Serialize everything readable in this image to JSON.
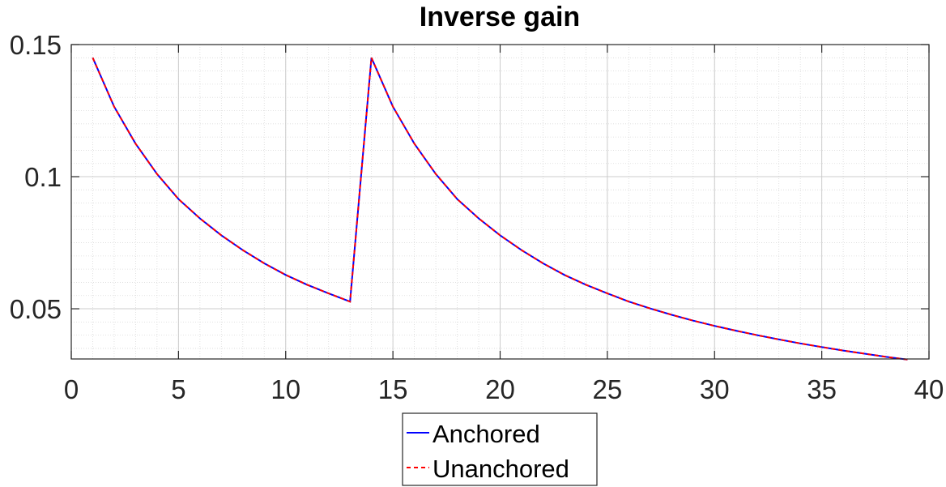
{
  "chart_data": {
    "type": "line",
    "title": "Inverse gain",
    "xlabel": "",
    "ylabel": "",
    "xlim": [
      0,
      40
    ],
    "ylim": [
      0.031,
      0.15
    ],
    "xticks": [
      0,
      5,
      10,
      15,
      20,
      25,
      30,
      35,
      40
    ],
    "xtick_labels": [
      "0",
      "5",
      "10",
      "15",
      "20",
      "25",
      "30",
      "35",
      "40"
    ],
    "yticks": [
      0.05,
      0.1,
      0.15
    ],
    "ytick_labels": [
      "0.05",
      "0.1",
      "0.15"
    ],
    "grid": true,
    "minor_grid": true,
    "legend_position": "bottom-center-outside",
    "x": [
      1,
      2,
      3,
      4,
      5,
      6,
      7,
      8,
      9,
      10,
      11,
      12,
      13,
      14,
      15,
      16,
      17,
      18,
      19,
      20,
      21,
      22,
      23,
      24,
      25,
      26,
      27,
      28,
      29,
      30,
      31,
      32,
      33,
      34,
      35,
      36,
      37,
      38,
      39
    ],
    "series": [
      {
        "name": "Anchored",
        "color": "#0000ff",
        "style": "solid",
        "values": [
          0.145,
          0.1265,
          0.1125,
          0.101,
          0.0915,
          0.0842,
          0.0778,
          0.0722,
          0.0672,
          0.0628,
          0.0591,
          0.0558,
          0.0527,
          0.145,
          0.1265,
          0.1125,
          0.101,
          0.0915,
          0.0842,
          0.0778,
          0.0722,
          0.0672,
          0.0628,
          0.0591,
          0.0558,
          0.0527,
          0.0501,
          0.0477,
          0.0455,
          0.0435,
          0.0417,
          0.04,
          0.0384,
          0.0369,
          0.0355,
          0.0342,
          0.033,
          0.0318,
          0.0308
        ]
      },
      {
        "name": "Unanchored",
        "color": "#ff0000",
        "style": "dashed",
        "values": [
          0.145,
          0.1265,
          0.1125,
          0.101,
          0.0915,
          0.0842,
          0.0778,
          0.0722,
          0.0672,
          0.0628,
          0.0591,
          0.0558,
          0.0527,
          0.145,
          0.1265,
          0.1125,
          0.101,
          0.0915,
          0.0842,
          0.0778,
          0.0722,
          0.0672,
          0.0628,
          0.0591,
          0.0558,
          0.0527,
          0.0501,
          0.0477,
          0.0455,
          0.0435,
          0.0417,
          0.04,
          0.0384,
          0.0369,
          0.0355,
          0.0342,
          0.033,
          0.0318,
          0.0308
        ]
      }
    ]
  }
}
